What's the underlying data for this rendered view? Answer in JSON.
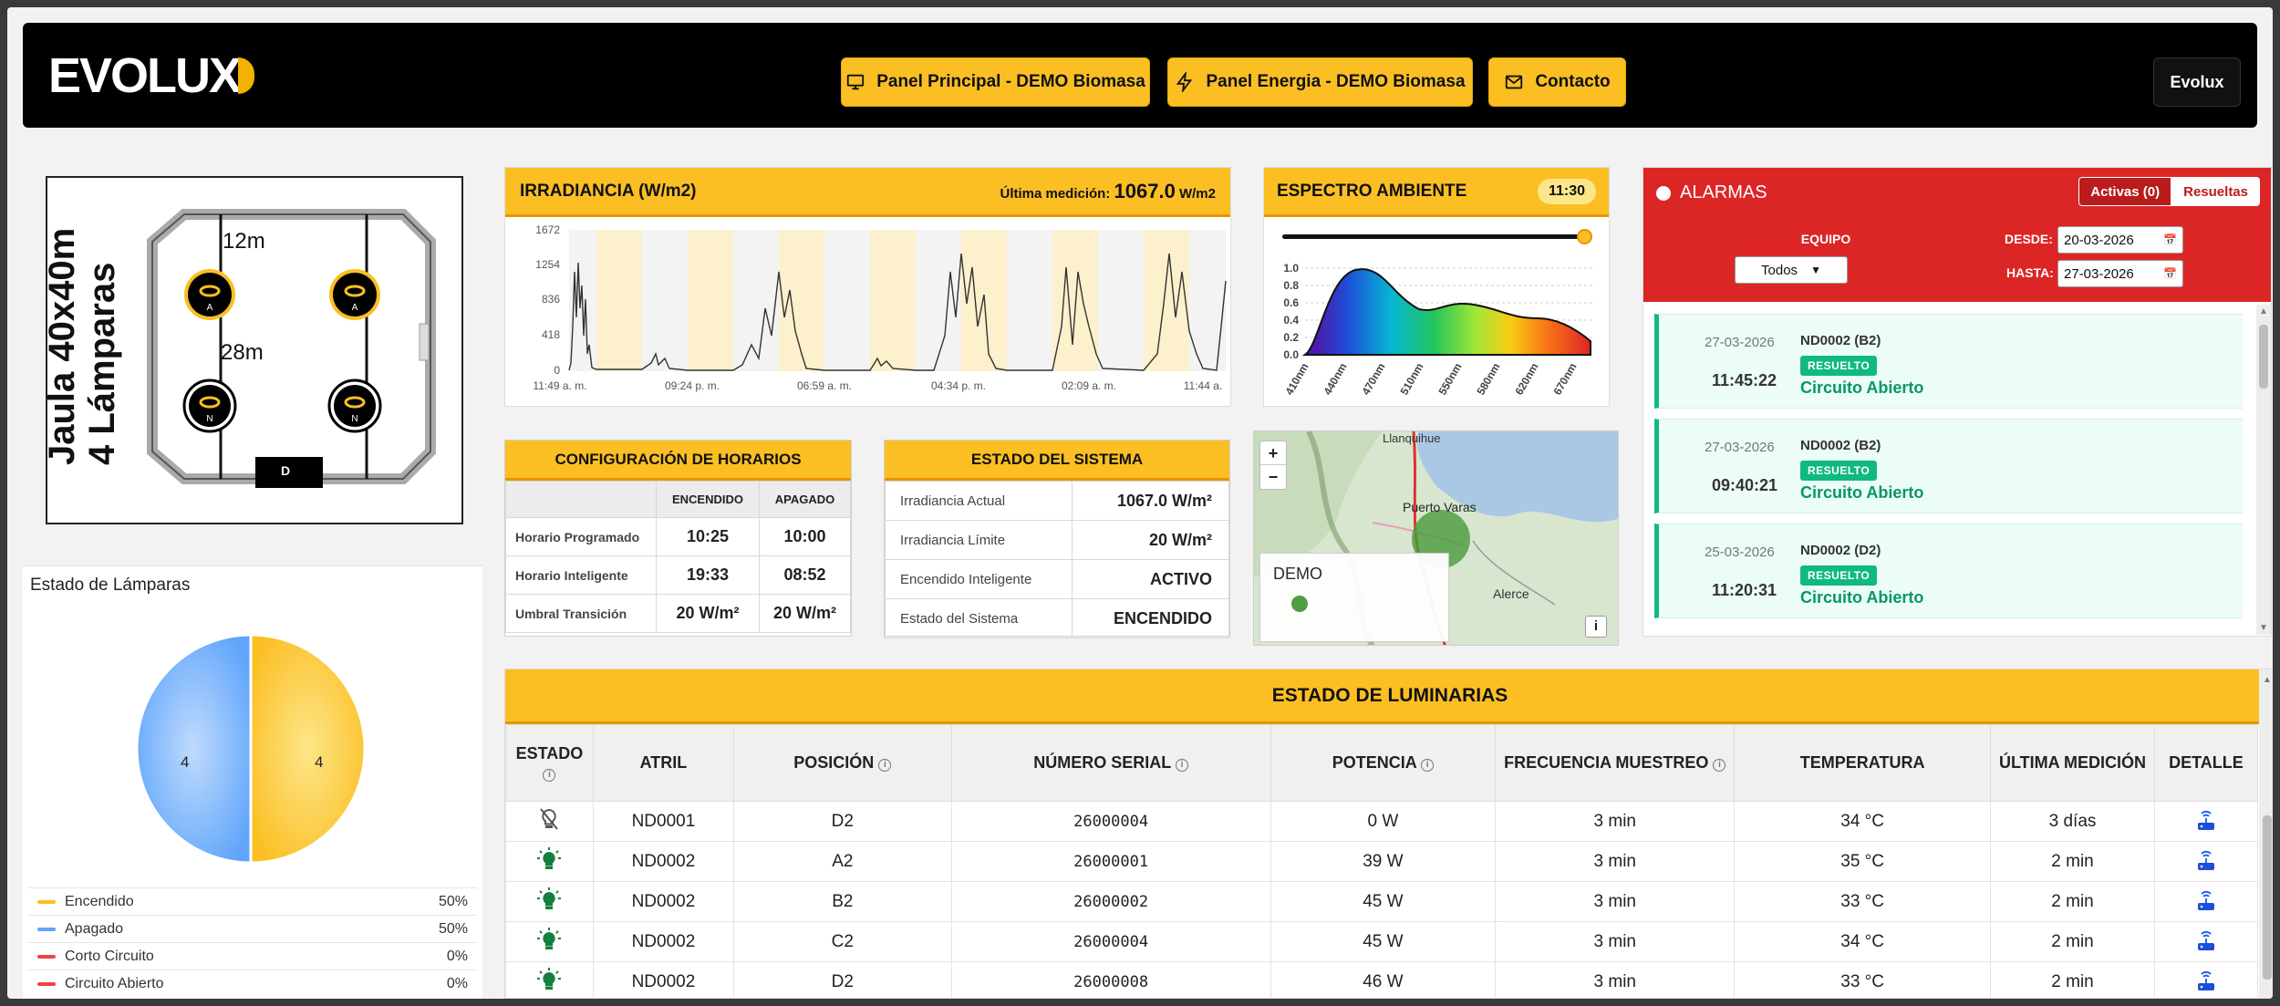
{
  "header": {
    "logo_text": "EVOLUX",
    "nav": [
      {
        "label": "Panel Principal - DEMO Biomasa",
        "icon": "monitor-icon"
      },
      {
        "label": "Panel Energia - DEMO Biomasa",
        "icon": "bolt-icon"
      },
      {
        "label": "Contacto",
        "icon": "mail-icon"
      }
    ],
    "user_label": "Evolux"
  },
  "cage": {
    "title_line1": "Jaula 40x40m",
    "title_line2": "4 Lámparas",
    "dim_top": "12m",
    "dim_mid": "28m",
    "lamps": [
      "A",
      "A",
      "N",
      "N"
    ],
    "gate_label": "D"
  },
  "lamp_status": {
    "title": "Estado de Lámparas",
    "pie_left_value": "4",
    "pie_right_value": "4",
    "legend": [
      {
        "label": "Encendido",
        "pct": "50%",
        "color": "#fbbf24"
      },
      {
        "label": "Apagado",
        "pct": "50%",
        "color": "#60a5fa"
      },
      {
        "label": "Corto Circuito",
        "pct": "0%",
        "color": "#ef4444"
      },
      {
        "label": "Circuito Abierto",
        "pct": "0%",
        "color": "#ef4444"
      }
    ]
  },
  "irradiance": {
    "title": "IRRADIANCIA (W/m2)",
    "last_label": "Última medición:",
    "last_value": "1067.0",
    "last_unit": "W/m2",
    "chart_data": {
      "type": "area",
      "yticks": [
        "1672",
        "1254",
        "836",
        "418",
        "0"
      ],
      "xticks": [
        "11:49 a. m.",
        "09:24 p. m.",
        "06:59 a. m.",
        "04:34 p. m.",
        "02:09 a. m.",
        "11:44 a."
      ],
      "ylim": [
        0,
        1672
      ]
    }
  },
  "spectrum": {
    "title": "ESPECTRO AMBIENTE",
    "time": "11:30",
    "slider_value": 1.0,
    "chart_data": {
      "type": "area",
      "yticks": [
        "1.0",
        "0.8",
        "0.6",
        "0.4",
        "0.2",
        "0.0"
      ],
      "xticks": [
        "410nm",
        "440nm",
        "470nm",
        "510nm",
        "550nm",
        "580nm",
        "620nm",
        "670nm"
      ],
      "ylim": [
        0,
        1.0
      ]
    }
  },
  "alarms": {
    "title": "ALARMAS",
    "tab_active": "Activas (0)",
    "tab_resolved": "Resueltas",
    "equipo_label": "EQUIPO",
    "equipo_value": "Todos",
    "desde_label": "DESDE:",
    "desde_value": "20-03-2026",
    "hasta_label": "HASTA:",
    "hasta_value": "27-03-2026",
    "items": [
      {
        "date": "27-03-2026",
        "time": "11:45:22",
        "device": "ND0002 (B2)",
        "badge": "RESUELTO",
        "desc": "Circuito Abierto"
      },
      {
        "date": "27-03-2026",
        "time": "09:40:21",
        "device": "ND0002 (B2)",
        "badge": "RESUELTO",
        "desc": "Circuito Abierto"
      },
      {
        "date": "25-03-2026",
        "time": "11:20:31",
        "device": "ND0002 (D2)",
        "badge": "RESUELTO",
        "desc": "Circuito Abierto"
      }
    ]
  },
  "config": {
    "title": "CONFIGURACIÓN DE HORARIOS",
    "col1": "ENCENDIDO",
    "col2": "APAGADO",
    "rows": [
      {
        "label": "Horario Programado",
        "on": "10:25",
        "off": "10:00"
      },
      {
        "label": "Horario Inteligente",
        "on": "19:33",
        "off": "08:52"
      },
      {
        "label": "Umbral Transición",
        "on": "20 W/m²",
        "off": "20 W/m²"
      }
    ]
  },
  "system": {
    "title": "ESTADO DEL SISTEMA",
    "rows": [
      {
        "label": "Irradiancia Actual",
        "value": "1067.0 W/m²"
      },
      {
        "label": "Irradiancia Límite",
        "value": "20 W/m²"
      },
      {
        "label": "Encendido Inteligente",
        "value": "ACTIVO"
      },
      {
        "label": "Estado del Sistema",
        "value": "ENCENDIDO"
      }
    ]
  },
  "map": {
    "places": [
      "Llanquihue",
      "Puerto Varas",
      "Alerce"
    ],
    "legend_title": "DEMO",
    "zoom_in": "+",
    "zoom_out": "−",
    "info": "i"
  },
  "luminarias": {
    "title": "ESTADO DE LUMINARIAS",
    "columns": [
      "ESTADO",
      "ATRIL",
      "POSICIÓN",
      "NÚMERO SERIAL",
      "POTENCIA",
      "FRECUENCIA MUESTREO",
      "TEMPERATURA",
      "ÚLTIMA MEDICIÓN",
      "DETALLE"
    ],
    "rows": [
      {
        "state": "off",
        "atril": "ND0001",
        "pos": "D2",
        "serial": "26000004",
        "power": "0 W",
        "freq": "3 min",
        "temp": "34 °C",
        "last": "3 días"
      },
      {
        "state": "on",
        "atril": "ND0002",
        "pos": "A2",
        "serial": "26000001",
        "power": "39 W",
        "freq": "3 min",
        "temp": "35 °C",
        "last": "2 min"
      },
      {
        "state": "on",
        "atril": "ND0002",
        "pos": "B2",
        "serial": "26000002",
        "power": "45 W",
        "freq": "3 min",
        "temp": "33 °C",
        "last": "2 min"
      },
      {
        "state": "on",
        "atril": "ND0002",
        "pos": "C2",
        "serial": "26000004",
        "power": "45 W",
        "freq": "3 min",
        "temp": "34 °C",
        "last": "2 min"
      },
      {
        "state": "on",
        "atril": "ND0002",
        "pos": "D2",
        "serial": "26000008",
        "power": "46 W",
        "freq": "3 min",
        "temp": "33 °C",
        "last": "2 min"
      }
    ]
  }
}
